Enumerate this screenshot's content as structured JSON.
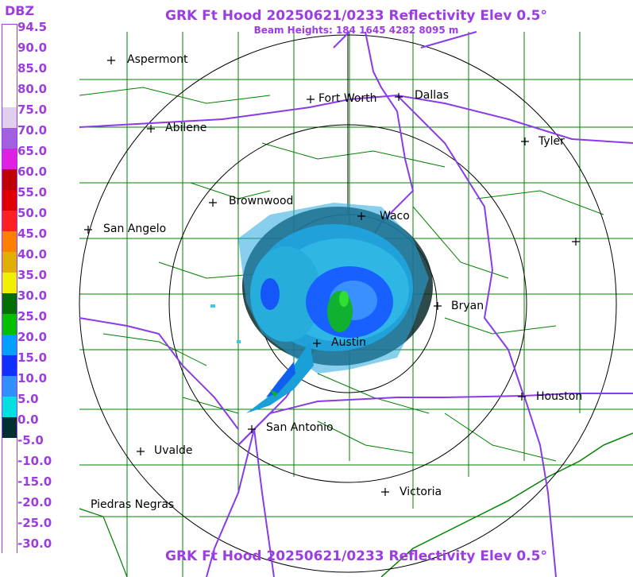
{
  "title": "GRK Ft Hood 20250621/0233 Reflectivity Elev 0.5°",
  "subtitle": "Beam Heights: 184 1645 4282 8095 m",
  "legend": {
    "unit": "DBZ",
    "labels": [
      "94.5",
      "90.0",
      "85.0",
      "80.0",
      "75.0",
      "70.0",
      "65.0",
      "60.0",
      "55.0",
      "50.0",
      "45.0",
      "40.0",
      "35.0",
      "30.0",
      "25.0",
      "20.0",
      "15.0",
      "10.0",
      "5.0",
      "0.0",
      "-5.0",
      "-10.0",
      "-15.0",
      "-20.0",
      "-25.0",
      "-30.0"
    ],
    "colors": [
      "#ffffff",
      "#ffffff",
      "#ffffff",
      "#ffffff",
      "#e0d0ee",
      "#a060e0",
      "#e020e0",
      "#c00000",
      "#e00000",
      "#ff2020",
      "#ff8000",
      "#e0b000",
      "#f0f000",
      "#007000",
      "#00c000",
      "#00a0ff",
      "#1030ff",
      "#3090ff",
      "#00e0e0",
      "#003030",
      "#ffffff",
      "#ffffff",
      "#ffffff",
      "#ffffff",
      "#ffffff",
      "#ffffff"
    ]
  },
  "cities": [
    {
      "name": "Aspermont"
    },
    {
      "name": "Fort Worth"
    },
    {
      "name": "Dallas"
    },
    {
      "name": "Abilene"
    },
    {
      "name": "Tyler"
    },
    {
      "name": "Brownwood"
    },
    {
      "name": "Waco"
    },
    {
      "name": "San Angelo"
    },
    {
      "name": "Bryan"
    },
    {
      "name": "Austin"
    },
    {
      "name": "Houston"
    },
    {
      "name": "San Antonio"
    },
    {
      "name": "Uvalde"
    },
    {
      "name": "Victoria"
    },
    {
      "name": "Piedras Negras"
    }
  ],
  "colors": {
    "text_accent": "#9b3de0",
    "county_lines": "#008000",
    "highways": "#8a3be6",
    "range_rings": "#000000"
  }
}
